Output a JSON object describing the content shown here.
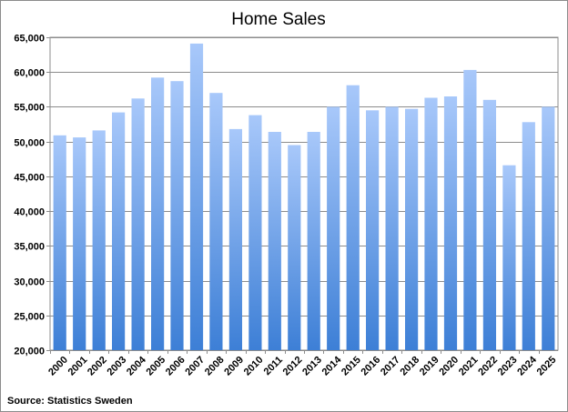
{
  "chart_data": {
    "type": "bar",
    "title": "Home Sales",
    "source": "Source: Statistics Sweden",
    "categories": [
      "2000",
      "2001",
      "2002",
      "2003",
      "2004",
      "2005",
      "2006",
      "2007",
      "2008",
      "2009",
      "2010",
      "2011",
      "2012",
      "2013",
      "2014",
      "2015",
      "2016",
      "2017",
      "2018",
      "2019",
      "2020",
      "2021",
      "2022",
      "2023",
      "2024",
      "2025"
    ],
    "values": [
      50900,
      50600,
      51600,
      54200,
      56200,
      59200,
      58700,
      64100,
      57000,
      51800,
      53800,
      51400,
      49500,
      51400,
      55000,
      58100,
      54500,
      55000,
      54700,
      56300,
      56500,
      60300,
      56000,
      46600,
      52800,
      55000
    ],
    "ylim": [
      20000,
      65000
    ],
    "yticks": [
      "20,000",
      "25,000",
      "30,000",
      "35,000",
      "40,000",
      "45,000",
      "50,000",
      "55,000",
      "60,000",
      "65,000"
    ],
    "ytick_values": [
      20000,
      25000,
      30000,
      35000,
      40000,
      45000,
      50000,
      55000,
      60000,
      65000
    ],
    "grid": true,
    "legend": "none",
    "colors": {
      "bar_top": "#a8c8fa",
      "bar_bottom": "#3d7fd6",
      "grid": "#8c8c8c"
    }
  }
}
